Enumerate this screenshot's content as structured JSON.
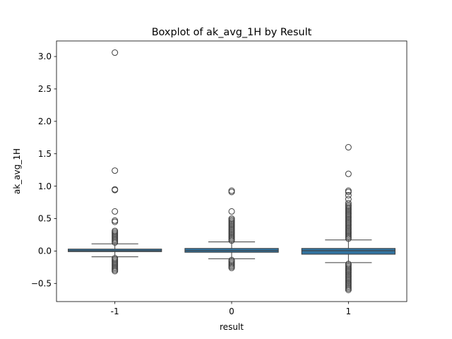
{
  "chart_data": {
    "type": "box",
    "title": "Boxplot of ak_avg_1H by Result",
    "xlabel": "result",
    "ylabel": "ak_avg_1H",
    "categories": [
      "-1",
      "0",
      "1"
    ],
    "ylim": [
      -0.78,
      3.24
    ],
    "yticks": [
      -0.5,
      0.0,
      0.5,
      1.0,
      1.5,
      2.0,
      2.5,
      3.0
    ],
    "ytick_labels": [
      "−0.5",
      "0.0",
      "0.5",
      "1.0",
      "1.5",
      "2.0",
      "2.5",
      "3.0"
    ],
    "grid": false,
    "box_color": "#3274a1",
    "boxes": [
      {
        "category": "-1",
        "q1": -0.01,
        "median": 0.005,
        "q3": 0.03,
        "whisker_low": -0.09,
        "whisker_high": 0.11,
        "outliers_high": [
          0.13,
          0.15,
          0.17,
          0.19,
          0.21,
          0.23,
          0.25,
          0.27,
          0.29,
          0.31,
          0.45,
          0.47,
          0.61,
          0.94,
          0.95,
          1.24,
          3.06
        ],
        "outliers_low": [
          -0.11,
          -0.13,
          -0.15,
          -0.17,
          -0.19,
          -0.21,
          -0.23,
          -0.25,
          -0.27,
          -0.29,
          -0.31
        ]
      },
      {
        "category": "0",
        "q1": -0.02,
        "median": 0.005,
        "q3": 0.04,
        "whisker_low": -0.12,
        "whisker_high": 0.14,
        "outliers_high": [
          0.16,
          0.18,
          0.2,
          0.22,
          0.24,
          0.26,
          0.28,
          0.3,
          0.32,
          0.34,
          0.36,
          0.38,
          0.4,
          0.42,
          0.44,
          0.46,
          0.48,
          0.5,
          0.61,
          0.91,
          0.93
        ],
        "outliers_low": [
          -0.14,
          -0.16,
          -0.18,
          -0.2,
          -0.22,
          -0.24,
          -0.26
        ]
      },
      {
        "category": "1",
        "q1": -0.05,
        "median": 0.005,
        "q3": 0.04,
        "whisker_low": -0.18,
        "whisker_high": 0.17,
        "outliers_high": [
          0.19,
          0.21,
          0.23,
          0.25,
          0.27,
          0.29,
          0.31,
          0.33,
          0.35,
          0.37,
          0.39,
          0.41,
          0.43,
          0.45,
          0.47,
          0.49,
          0.51,
          0.53,
          0.55,
          0.57,
          0.59,
          0.61,
          0.63,
          0.65,
          0.67,
          0.69,
          0.71,
          0.74,
          0.8,
          0.86,
          0.91,
          0.93,
          1.19,
          1.6
        ],
        "outliers_low": [
          -0.2,
          -0.22,
          -0.24,
          -0.26,
          -0.28,
          -0.3,
          -0.32,
          -0.34,
          -0.36,
          -0.38,
          -0.4,
          -0.42,
          -0.44,
          -0.46,
          -0.48,
          -0.5,
          -0.52,
          -0.54,
          -0.56,
          -0.58,
          -0.6
        ]
      }
    ]
  }
}
